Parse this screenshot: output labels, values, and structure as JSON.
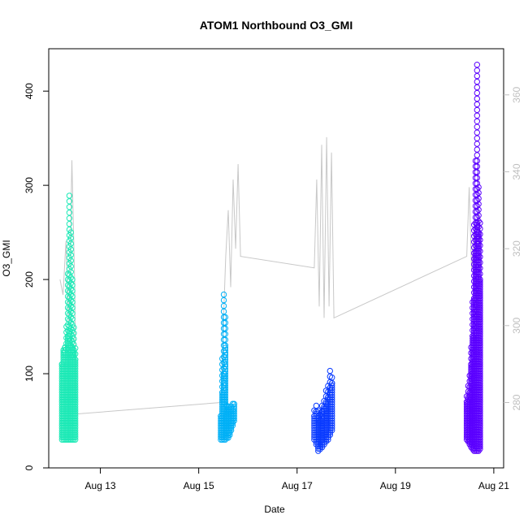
{
  "chart_data": {
    "type": "scatter",
    "title": "ATOM1 Northbound O3_GMI",
    "xlabel": "Date",
    "ylabel": "O3_GMI",
    "x_ticks": [
      "Aug 13",
      "Aug 15",
      "Aug 17",
      "Aug 19",
      "Aug 21"
    ],
    "x_tick_days": [
      13,
      15,
      17,
      19,
      21
    ],
    "xlim_days": [
      11.95,
      21.2
    ],
    "ylim": [
      0,
      445
    ],
    "y_ticks": [
      0,
      100,
      200,
      300,
      400
    ],
    "y2_ticks": [
      280,
      300,
      320,
      340,
      360
    ],
    "y2lim": [
      263,
      372
    ],
    "y2_color": "#bfbfbf",
    "point_marker": "open-circle",
    "series": [
      {
        "color": "#1de9b6",
        "x_days": [
          12.22,
          12.25,
          12.28,
          12.31,
          12.34,
          12.37,
          12.4,
          12.43,
          12.46,
          12.49
        ],
        "y_min": [
          30,
          30,
          30,
          30,
          30,
          30,
          30,
          30,
          30,
          30
        ],
        "y_core": [
          110,
          125,
          128,
          120,
          140,
          145,
          130,
          128,
          125,
          115
        ],
        "y_max": [
          110,
          125,
          128,
          150,
          210,
          292,
          250,
          200,
          150,
          128
        ]
      },
      {
        "color": "#00b0f6",
        "x_days": [
          15.45,
          15.48,
          15.51,
          15.54,
          15.57,
          15.6,
          15.63,
          15.66,
          15.69,
          15.72
        ],
        "y_min": [
          30,
          30,
          30,
          30,
          32,
          32,
          35,
          40,
          45,
          50
        ],
        "y_core": [
          55,
          80,
          100,
          130,
          60,
          65,
          60,
          65,
          62,
          68
        ],
        "y_max": [
          60,
          120,
          184,
          160,
          70,
          68,
          65,
          70,
          70,
          72
        ]
      },
      {
        "color": "#0a3bff",
        "x_days": [
          17.35,
          17.39,
          17.43,
          17.47,
          17.51,
          17.55,
          17.59,
          17.63,
          17.67,
          17.71
        ],
        "y_min": [
          30,
          25,
          18,
          20,
          22,
          25,
          28,
          30,
          35,
          40
        ],
        "y_core": [
          55,
          60,
          55,
          50,
          60,
          65,
          70,
          75,
          85,
          90
        ],
        "y_max": [
          65,
          68,
          65,
          60,
          70,
          75,
          85,
          90,
          103,
          100
        ]
      },
      {
        "color": "#5b00ff",
        "x_days": [
          20.45,
          20.48,
          20.51,
          20.54,
          20.57,
          20.6,
          20.63,
          20.66,
          20.69,
          20.72
        ],
        "y_min": [
          30,
          28,
          25,
          22,
          20,
          18,
          18,
          18,
          18,
          20
        ],
        "y_core": [
          70,
          75,
          80,
          110,
          140,
          180,
          230,
          260,
          250,
          200
        ],
        "y_max": [
          80,
          90,
          100,
          130,
          180,
          260,
          330,
          428,
          300,
          260
        ]
      }
    ],
    "line_series": {
      "color": "#c8c8c8",
      "axis": "right",
      "x_days": [
        12.18,
        12.24,
        12.3,
        12.36,
        12.42,
        12.48,
        12.5,
        15.45,
        15.5,
        15.55,
        15.6,
        15.65,
        15.7,
        15.75,
        15.8,
        15.85,
        17.35,
        17.4,
        17.45,
        17.5,
        17.55,
        17.6,
        17.65,
        17.7,
        17.75,
        20.45,
        20.5,
        20.55,
        20.6,
        20.65,
        20.7,
        20.75
      ],
      "y": [
        312,
        308,
        322,
        300,
        343,
        310,
        277,
        280,
        300,
        318,
        330,
        310,
        338,
        320,
        342,
        318,
        315,
        338,
        305,
        347,
        302,
        349,
        305,
        345,
        302,
        318,
        336,
        314,
        325,
        300,
        330,
        315
      ]
    }
  }
}
